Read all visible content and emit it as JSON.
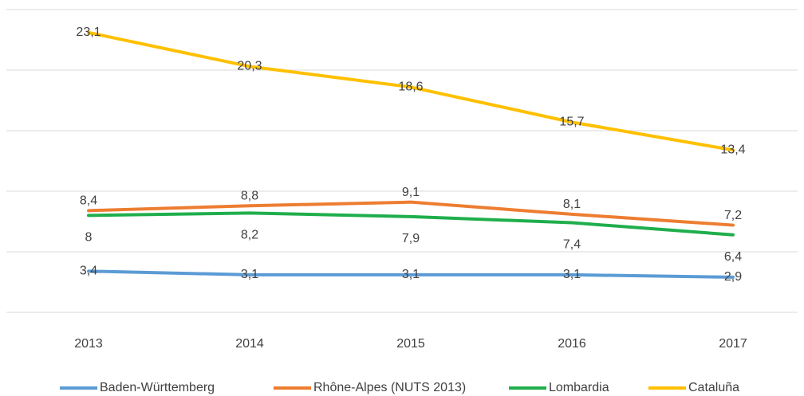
{
  "chart_data": {
    "type": "line",
    "categories": [
      "2013",
      "2014",
      "2015",
      "2016",
      "2017"
    ],
    "ylim": [
      0,
      25
    ],
    "yticks": [
      0,
      5,
      10,
      15,
      20,
      25
    ],
    "grid": true,
    "legend": "bottom",
    "series": [
      {
        "name": "Baden-Württemberg",
        "color": "#5b9bd5",
        "values": [
          3.4,
          3.1,
          3.1,
          3.1,
          2.9
        ],
        "value_labels": [
          "3,4",
          "3,1",
          "3,1",
          "3,1",
          "2,9"
        ]
      },
      {
        "name": "Rhône-Alpes (NUTS 2013)",
        "color": "#ed7d31",
        "values": [
          8.4,
          8.8,
          9.1,
          8.1,
          7.2
        ],
        "value_labels": [
          "8,4",
          "8,8",
          "9,1",
          "8,1",
          "7,2"
        ]
      },
      {
        "name": "Lombardia",
        "color": "#1fae4c",
        "values": [
          8,
          8.2,
          7.9,
          7.4,
          6.4
        ],
        "value_labels": [
          "8",
          "8,2",
          "7,9",
          "7,4",
          "6,4"
        ]
      },
      {
        "name": "Cataluña",
        "color": "#ffc000",
        "values": [
          23.1,
          20.3,
          18.6,
          15.7,
          13.4
        ],
        "value_labels": [
          "23,1",
          "20,3",
          "18,6",
          "15,7",
          "13,4"
        ]
      }
    ]
  }
}
